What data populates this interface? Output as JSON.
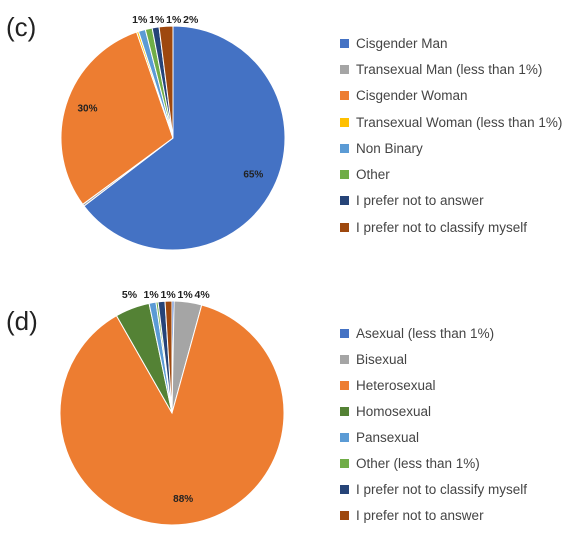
{
  "chart_data": [
    {
      "type": "pie",
      "panel_label": "(c)",
      "legend_position": "right",
      "slices": [
        {
          "label": "Cisgender Man",
          "value": 65,
          "data_label": "65%",
          "color": "#4472C4"
        },
        {
          "label": "Transexual Man (less than 1%)",
          "value": 0.3,
          "data_label": "",
          "color": "#A5A5A5"
        },
        {
          "label": "Cisgender Woman",
          "value": 30,
          "data_label": "30%",
          "color": "#ED7D31"
        },
        {
          "label": "Transexual Woman (less than 1%)",
          "value": 0.3,
          "data_label": "",
          "color": "#FFC000"
        },
        {
          "label": "Non Binary",
          "value": 1,
          "data_label": "1%",
          "color": "#5B9BD5"
        },
        {
          "label": "Other",
          "value": 1,
          "data_label": "1%",
          "color": "#70AD47"
        },
        {
          "label": "I prefer not to answer",
          "value": 1,
          "data_label": "1%",
          "color": "#264478"
        },
        {
          "label": "I prefer not to classify myself",
          "value": 2,
          "data_label": "2%",
          "color": "#9E480E"
        }
      ]
    },
    {
      "type": "pie",
      "panel_label": "(d)",
      "legend_position": "right",
      "slices": [
        {
          "label": "Asexual (less than 1%)",
          "value": 0.3,
          "data_label": "",
          "color": "#4472C4"
        },
        {
          "label": "Bisexual",
          "value": 4,
          "data_label": "4%",
          "color": "#A5A5A5"
        },
        {
          "label": "Heterosexual",
          "value": 88,
          "data_label": "88%",
          "color": "#ED7D31"
        },
        {
          "label": "Homosexual",
          "value": 5,
          "data_label": "5%",
          "color": "#548235"
        },
        {
          "label": "Pansexual",
          "value": 1,
          "data_label": "1%",
          "color": "#5B9BD5"
        },
        {
          "label": "Other (less than 1%)",
          "value": 0.3,
          "data_label": "",
          "color": "#70AD47"
        },
        {
          "label": "I prefer not to classify myself",
          "value": 1,
          "data_label": "1%",
          "color": "#264478"
        },
        {
          "label": "I prefer not to answer",
          "value": 1,
          "data_label": "1%",
          "color": "#9E480E"
        }
      ]
    }
  ]
}
